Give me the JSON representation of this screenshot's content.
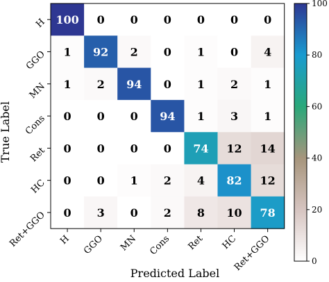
{
  "chart_data": {
    "type": "heatmap",
    "title": "",
    "xlabel": "Predicted Label",
    "ylabel": "True Label",
    "x_categories": [
      "H",
      "GGO",
      "MN",
      "Cons",
      "Ret",
      "HC",
      "Ret+GGO"
    ],
    "y_categories": [
      "H",
      "GGO",
      "MN",
      "Cons",
      "Ret",
      "HC",
      "Ret+GGO"
    ],
    "values": [
      [
        100,
        0,
        0,
        0,
        0,
        0,
        0
      ],
      [
        1,
        92,
        2,
        0,
        1,
        0,
        4
      ],
      [
        1,
        2,
        94,
        0,
        1,
        2,
        1
      ],
      [
        0,
        0,
        0,
        94,
        1,
        3,
        1
      ],
      [
        0,
        0,
        0,
        0,
        74,
        12,
        14
      ],
      [
        0,
        0,
        1,
        2,
        4,
        82,
        12
      ],
      [
        0,
        3,
        0,
        2,
        8,
        10,
        78
      ]
    ],
    "colorbar": {
      "min": 0,
      "max": 100,
      "ticks": [
        0,
        20,
        40,
        60,
        80,
        100
      ],
      "colormap": "gist_earth_r",
      "colors": [
        "#ffffff",
        "#d6c4c0",
        "#a6957c",
        "#2aa87a",
        "#1a9bd0",
        "#2e3792"
      ]
    }
  }
}
